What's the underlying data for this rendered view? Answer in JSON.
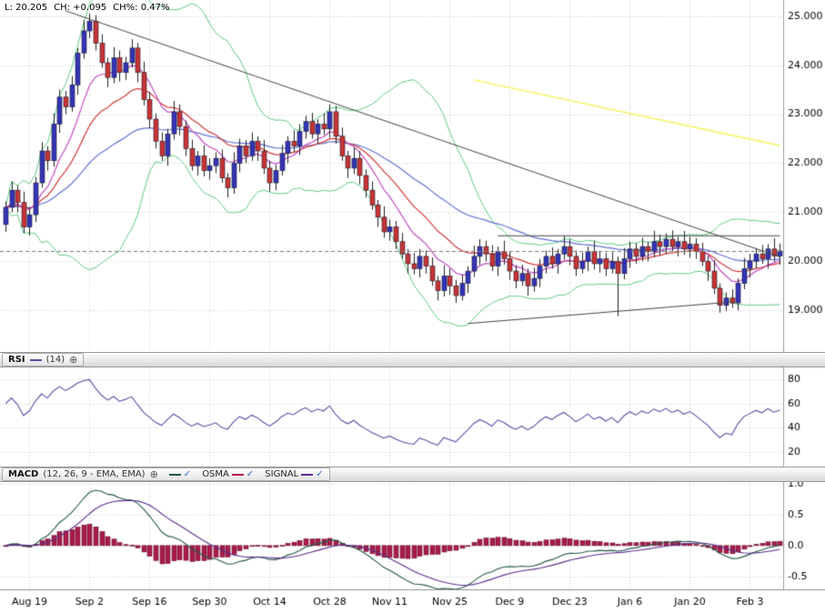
{
  "icons": {
    "add_glyph": "⊕",
    "check_glyph": "✓"
  },
  "main": {
    "info": {
      "last": "L: 20.205",
      "change": "CH: +0.095",
      "change_pct": "CH%: 0.47%"
    },
    "y_ticks": {
      "labels": [
        "25.000",
        "24.000",
        "23.000",
        "22.000",
        "21.000",
        "20.000",
        "19.000"
      ],
      "values": [
        25,
        24,
        23,
        22,
        21,
        20,
        19
      ]
    }
  },
  "rsi": {
    "title": "RSI",
    "params": "(14)",
    "line_color": "#5a4fa2",
    "y_ticks": {
      "labels": [
        "80",
        "60",
        "40",
        "20"
      ],
      "values": [
        80,
        60,
        40,
        20
      ]
    }
  },
  "macd": {
    "title": "MACD",
    "params": "(12, 26, 9 - EMA, EMA)",
    "legend": [
      {
        "label": "",
        "color": "#23584a"
      },
      {
        "label": "OSMA",
        "color": "#b51e47"
      },
      {
        "label": "SIGNAL",
        "color": "#5b2d8e"
      }
    ],
    "y_ticks": {
      "labels": [
        "1.0",
        "0.5",
        "0.0",
        "-0.5"
      ],
      "values": [
        1.0,
        0.5,
        0.0,
        -0.5
      ]
    }
  },
  "x_axis": {
    "labels": [
      "Aug 19",
      "Sep 2",
      "Sep 16",
      "Sep 30",
      "Oct 14",
      "Oct 28",
      "Nov 11",
      "Nov 25",
      "Dec 9",
      "Dec 23",
      "Jan 6",
      "Jan 20",
      "Feb 3"
    ],
    "tick_indices": [
      4,
      14,
      24,
      34,
      44,
      54,
      64,
      74,
      84,
      94,
      104,
      114,
      124
    ]
  },
  "chart_data": [
    {
      "type": "candlestick",
      "name": "price",
      "title": "Daily price with Bollinger bands, EMAs and trendlines",
      "ylim": [
        18.15,
        25.33
      ],
      "up_color": "#3434b8",
      "down_color": "#c93434",
      "wick_color": "#222222",
      "indicators": {
        "bollinger": {
          "period": 20,
          "stddev": 2,
          "color": "#5ecb85"
        },
        "ema_fast": {
          "period": 9,
          "color": "#c24bc2"
        },
        "ema_mid": {
          "period": 18,
          "color": "#cf3b3b"
        },
        "ema_slow": {
          "period": 40,
          "color": "#6272cf"
        }
      },
      "lines": [
        {
          "name": "descending-trendline",
          "color": "#444444",
          "width": 1,
          "points": [
            [
              10,
              25.11
            ],
            [
              129,
              20.09
            ]
          ]
        },
        {
          "name": "horizontal-resistance",
          "color": "#444444",
          "width": 1,
          "points": [
            [
              82,
              20.52
            ],
            [
              129,
              20.52
            ]
          ]
        },
        {
          "name": "ascending-support",
          "color": "#444444",
          "width": 1,
          "points": [
            [
              77,
              18.73
            ],
            [
              121,
              19.17
            ]
          ]
        },
        {
          "name": "yellow-trendline",
          "color": "#f6f67e",
          "width": 2,
          "points": [
            [
              78,
              23.7
            ],
            [
              129,
              22.36
            ]
          ]
        },
        {
          "name": "last-price-line",
          "color": "#777777",
          "width": 1,
          "dash": [
            4,
            3
          ],
          "full_width": true,
          "points": [
            [
              0,
              20.205
            ],
            [
              129,
              20.205
            ]
          ]
        }
      ],
      "ohlc": [
        [
          20.75,
          21.22,
          20.6,
          21.1
        ],
        [
          21.1,
          21.63,
          21.0,
          21.45
        ],
        [
          21.45,
          21.55,
          21.0,
          21.2
        ],
        [
          21.2,
          21.42,
          20.58,
          20.7
        ],
        [
          20.7,
          21.1,
          20.52,
          20.95
        ],
        [
          20.95,
          21.72,
          20.8,
          21.6
        ],
        [
          21.6,
          22.43,
          21.5,
          22.25
        ],
        [
          22.25,
          22.35,
          21.85,
          22.05
        ],
        [
          22.05,
          23.02,
          21.93,
          22.8
        ],
        [
          22.8,
          23.5,
          22.62,
          23.35
        ],
        [
          23.35,
          23.47,
          23.0,
          23.15
        ],
        [
          23.15,
          23.78,
          23.05,
          23.6
        ],
        [
          23.6,
          24.35,
          23.4,
          24.25
        ],
        [
          24.25,
          24.92,
          24.13,
          24.7
        ],
        [
          24.7,
          25.05,
          24.55,
          24.9
        ],
        [
          24.9,
          25.02,
          24.3,
          24.45
        ],
        [
          24.45,
          24.63,
          23.95,
          24.05
        ],
        [
          24.05,
          24.15,
          23.55,
          23.75
        ],
        [
          23.75,
          24.37,
          23.63,
          24.15
        ],
        [
          24.15,
          24.3,
          23.67,
          23.85
        ],
        [
          23.85,
          24.17,
          23.7,
          24.05
        ],
        [
          24.05,
          24.53,
          23.95,
          24.35
        ],
        [
          24.35,
          24.45,
          23.65,
          23.85
        ],
        [
          23.85,
          24.07,
          23.18,
          23.3
        ],
        [
          23.3,
          23.45,
          22.72,
          22.9
        ],
        [
          22.9,
          23.02,
          22.3,
          22.45
        ],
        [
          22.45,
          22.63,
          22.05,
          22.15
        ],
        [
          22.15,
          22.7,
          21.95,
          22.6
        ],
        [
          22.6,
          23.27,
          22.48,
          23.05
        ],
        [
          23.05,
          23.2,
          22.57,
          22.75
        ],
        [
          22.75,
          22.87,
          22.15,
          22.3
        ],
        [
          22.3,
          22.48,
          21.85,
          21.95
        ],
        [
          21.95,
          22.25,
          21.75,
          22.15
        ],
        [
          22.15,
          22.37,
          21.73,
          21.85
        ],
        [
          21.85,
          22.1,
          21.67,
          21.95
        ],
        [
          21.95,
          22.22,
          21.8,
          22.1
        ],
        [
          22.1,
          22.28,
          21.6,
          21.7
        ],
        [
          21.7,
          21.8,
          21.3,
          21.5
        ],
        [
          21.5,
          22.22,
          21.38,
          22.0
        ],
        [
          22.0,
          22.5,
          21.82,
          22.35
        ],
        [
          22.35,
          22.47,
          22.0,
          22.15
        ],
        [
          22.15,
          22.63,
          22.05,
          22.45
        ],
        [
          22.45,
          22.55,
          22.05,
          22.25
        ],
        [
          22.25,
          22.47,
          21.78,
          21.9
        ],
        [
          21.9,
          22.05,
          21.42,
          21.6
        ],
        [
          21.6,
          21.97,
          21.45,
          21.85
        ],
        [
          21.85,
          22.38,
          21.75,
          22.2
        ],
        [
          22.2,
          22.55,
          22.0,
          22.45
        ],
        [
          22.45,
          22.67,
          22.23,
          22.35
        ],
        [
          22.35,
          22.8,
          22.17,
          22.65
        ],
        [
          22.65,
          22.97,
          22.5,
          22.85
        ],
        [
          22.85,
          23.03,
          22.5,
          22.6
        ],
        [
          22.6,
          22.9,
          22.4,
          22.8
        ],
        [
          22.8,
          23.02,
          22.58,
          22.7
        ],
        [
          22.7,
          23.2,
          22.52,
          23.05
        ],
        [
          23.05,
          23.17,
          22.4,
          22.55
        ],
        [
          22.55,
          22.73,
          22.05,
          22.15
        ],
        [
          22.15,
          22.25,
          21.7,
          21.9
        ],
        [
          21.9,
          22.32,
          21.78,
          22.1
        ],
        [
          22.1,
          22.25,
          21.57,
          21.75
        ],
        [
          21.75,
          21.87,
          21.3,
          21.45
        ],
        [
          21.45,
          21.63,
          21.05,
          21.15
        ],
        [
          21.15,
          21.25,
          20.7,
          20.9
        ],
        [
          20.9,
          21.12,
          20.48,
          20.6
        ],
        [
          20.6,
          20.85,
          20.42,
          20.7
        ],
        [
          20.7,
          20.82,
          20.25,
          20.4
        ],
        [
          20.4,
          20.58,
          20.05,
          20.15
        ],
        [
          20.15,
          20.25,
          19.75,
          19.95
        ],
        [
          19.95,
          20.17,
          19.73,
          19.85
        ],
        [
          19.85,
          20.25,
          19.67,
          20.1
        ],
        [
          20.1,
          20.22,
          19.75,
          19.9
        ],
        [
          19.9,
          20.08,
          19.5,
          19.6
        ],
        [
          19.6,
          19.7,
          19.2,
          19.4
        ],
        [
          19.4,
          19.92,
          19.28,
          19.7
        ],
        [
          19.7,
          19.85,
          19.32,
          19.5
        ],
        [
          19.5,
          19.62,
          19.15,
          19.3
        ],
        [
          19.3,
          19.73,
          19.2,
          19.55
        ],
        [
          19.55,
          19.9,
          19.35,
          19.8
        ],
        [
          19.8,
          20.32,
          19.68,
          20.1
        ],
        [
          20.1,
          20.45,
          19.92,
          20.3
        ],
        [
          20.3,
          20.42,
          20.0,
          20.15
        ],
        [
          20.15,
          20.33,
          19.8,
          19.9
        ],
        [
          19.9,
          20.3,
          19.7,
          20.2
        ],
        [
          20.2,
          20.42,
          19.93,
          20.05
        ],
        [
          20.05,
          20.2,
          19.62,
          19.8
        ],
        [
          19.8,
          19.92,
          19.45,
          19.6
        ],
        [
          19.6,
          19.93,
          19.5,
          19.75
        ],
        [
          19.75,
          19.85,
          19.3,
          19.5
        ],
        [
          19.5,
          19.87,
          19.38,
          19.65
        ],
        [
          19.65,
          20.05,
          19.47,
          19.9
        ],
        [
          19.9,
          20.22,
          19.75,
          20.1
        ],
        [
          20.1,
          20.28,
          19.85,
          19.95
        ],
        [
          19.95,
          20.25,
          19.75,
          20.15
        ],
        [
          20.15,
          20.52,
          20.03,
          20.3
        ],
        [
          20.3,
          20.45,
          19.92,
          20.1
        ],
        [
          20.1,
          20.22,
          19.7,
          19.85
        ],
        [
          19.85,
          20.18,
          19.75,
          20.0
        ],
        [
          20.0,
          20.3,
          19.8,
          20.2
        ],
        [
          20.2,
          20.42,
          19.83,
          19.95
        ],
        [
          19.95,
          20.2,
          19.77,
          20.05
        ],
        [
          20.05,
          20.17,
          19.7,
          19.85
        ],
        [
          19.85,
          20.18,
          19.75,
          20.0
        ],
        [
          20.0,
          20.1,
          18.88,
          19.75
        ],
        [
          19.75,
          20.27,
          19.63,
          20.05
        ],
        [
          20.05,
          20.4,
          19.87,
          20.25
        ],
        [
          20.25,
          20.37,
          19.95,
          20.1
        ],
        [
          20.1,
          20.48,
          20.0,
          20.3
        ],
        [
          20.3,
          20.4,
          20.0,
          20.2
        ],
        [
          20.2,
          20.62,
          20.08,
          20.4
        ],
        [
          20.4,
          20.55,
          20.12,
          20.3
        ],
        [
          20.3,
          20.57,
          20.15,
          20.45
        ],
        [
          20.45,
          20.63,
          20.2,
          20.3
        ],
        [
          20.3,
          20.5,
          20.1,
          20.4
        ],
        [
          20.4,
          20.62,
          20.13,
          20.25
        ],
        [
          20.25,
          20.5,
          20.07,
          20.35
        ],
        [
          20.35,
          20.47,
          20.05,
          20.2
        ],
        [
          20.2,
          20.38,
          19.9,
          20.0
        ],
        [
          20.0,
          20.1,
          19.6,
          19.8
        ],
        [
          19.8,
          20.02,
          19.33,
          19.45
        ],
        [
          19.45,
          19.55,
          18.95,
          19.1
        ],
        [
          19.1,
          19.37,
          18.98,
          19.25
        ],
        [
          19.25,
          19.43,
          19.05,
          19.15
        ],
        [
          19.15,
          19.65,
          19.0,
          19.55
        ],
        [
          19.55,
          20.07,
          19.43,
          19.85
        ],
        [
          19.85,
          20.15,
          19.67,
          20.0
        ],
        [
          20.0,
          20.27,
          19.85,
          20.15
        ],
        [
          20.15,
          20.33,
          19.95,
          20.05
        ],
        [
          20.05,
          20.35,
          19.85,
          20.25
        ],
        [
          20.25,
          20.47,
          19.99,
          20.11
        ],
        [
          20.11,
          20.36,
          19.93,
          20.21
        ]
      ]
    },
    {
      "type": "line",
      "name": "RSI",
      "period": 14,
      "color": "#5a4fa2",
      "ylim": [
        8,
        90
      ],
      "grid_values": [
        80,
        60,
        40,
        20
      ],
      "source": "computed from candle closes"
    },
    {
      "type": "bar",
      "name": "MACD",
      "fast": 12,
      "slow": 26,
      "signal_period": 9,
      "line_color": "#23584a",
      "signal_color": "#5b2d8e",
      "histogram_color": "#a81c4c",
      "ylim": [
        -0.71,
        1.03
      ],
      "grid_values": [
        1.0,
        0.5,
        0.0,
        -0.5
      ],
      "source": "computed from candle closes"
    }
  ]
}
